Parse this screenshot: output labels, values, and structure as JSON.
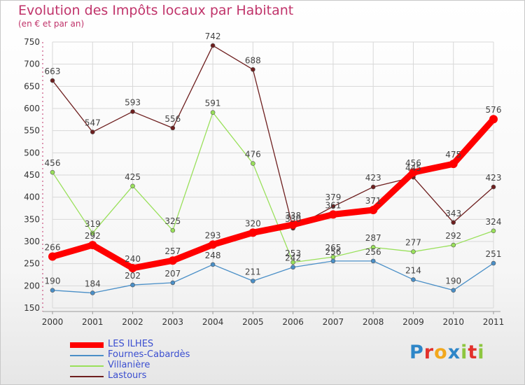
{
  "title": "Evolution des Impôts locaux par Habitant",
  "subtitle": "(en € et par an)",
  "logo": [
    "P",
    "r",
    "o",
    "x",
    "i",
    "t",
    "i"
  ],
  "logo_colors": [
    "#2e86c8",
    "#e2312b",
    "#f2a81d",
    "#2e86c8",
    "#8dc63f",
    "#e2312b",
    "#8dc63f"
  ],
  "chart_data": {
    "type": "line",
    "x": [
      "2000",
      "2001",
      "2002",
      "2003",
      "2004",
      "2005",
      "2006",
      "2007",
      "2008",
      "2009",
      "2010",
      "2011"
    ],
    "ylim": [
      150,
      750
    ],
    "yticks": [
      150,
      200,
      250,
      300,
      350,
      400,
      450,
      500,
      550,
      600,
      650,
      700,
      750
    ],
    "grid": true,
    "legend_position": "bottom-left",
    "series": [
      {
        "name": "LES ILHES",
        "color": "#ff0000",
        "values": [
          266,
          292,
          240,
          257,
          293,
          320,
          338,
          361,
          371,
          456,
          475,
          576
        ]
      },
      {
        "name": "Fournes-Cabardès",
        "color": "#4a8fc7",
        "values": [
          190,
          184,
          202,
          207,
          248,
          211,
          242,
          256,
          256,
          214,
          190,
          251
        ]
      },
      {
        "name": "Villanière",
        "color": "#99e05a",
        "values": [
          456,
          319,
          425,
          325,
          591,
          476,
          253,
          265,
          287,
          277,
          292,
          324
        ]
      },
      {
        "name": "Lastours",
        "color": "#6e1f1f",
        "values": [
          663,
          547,
          593,
          556,
          742,
          688,
          330,
          379,
          423,
          445,
          343,
          423
        ]
      }
    ]
  }
}
